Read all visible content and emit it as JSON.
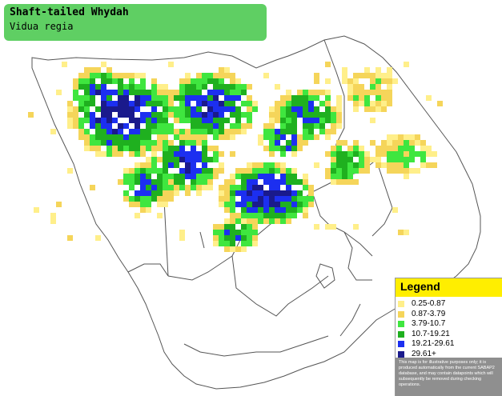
{
  "title": {
    "common_name": "Shaft-tailed Whydah",
    "scientific_name": "Vidua regia"
  },
  "legend": {
    "title": "Legend",
    "items": [
      {
        "label": "0.25-0.87",
        "color": "#ffef8a"
      },
      {
        "label": "0.87-3.79",
        "color": "#f5d55a"
      },
      {
        "label": "3.79-10.7",
        "color": "#3fe63f"
      },
      {
        "label": "10.7-19.21",
        "color": "#1fb01f"
      },
      {
        "label": "19.21-29.61",
        "color": "#1c2ff0"
      },
      {
        "label": "29.61+",
        "color": "#1a1a8c"
      }
    ],
    "disclaimer": "This map is for illustrative purposes only; it is produced automatically from the current SABAP2 database, and may contain datapoints which will subsequently be removed during checking operations."
  },
  "map_colors": {
    "boundary": "#555555",
    "background": "#ffffff"
  }
}
